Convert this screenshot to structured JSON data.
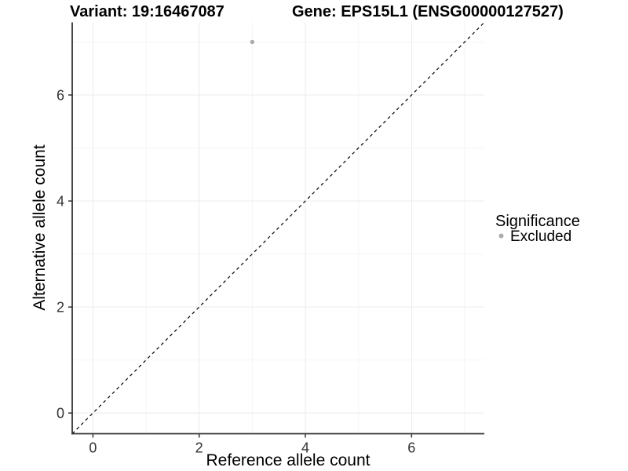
{
  "header": {
    "variant_title": "Variant: 19:16467087",
    "gene_title": "Gene: EPS15L1 (ENSG00000127527)"
  },
  "chart_data": {
    "type": "scatter",
    "title": "Variant: 19:16467087  Gene: EPS15L1 (ENSG00000127527)",
    "xlabel": "Reference allele count",
    "ylabel": "Alternative allele count",
    "xlim": [
      -0.39,
      7.37
    ],
    "ylim": [
      -0.39,
      7.37
    ],
    "x_ticks": [
      0,
      2,
      4,
      6
    ],
    "y_ticks": [
      0,
      2,
      4,
      6
    ],
    "x_minor_ticks": [
      1,
      3,
      5,
      7
    ],
    "y_minor_ticks": [
      1,
      3,
      5,
      7
    ],
    "grid": true,
    "legend_position": "right",
    "series": [
      {
        "name": "Excluded",
        "points": [
          {
            "x": 3,
            "y": 7
          }
        ]
      }
    ],
    "reference_line": {
      "kind": "abline",
      "slope": 1,
      "intercept": 0,
      "style": "dashed"
    }
  },
  "legend": {
    "title": "Significance",
    "items": [
      {
        "label": "Excluded",
        "color": "#ababab"
      }
    ]
  },
  "colors": {
    "point": "#ababab",
    "axis_line": "#333333",
    "tick_text": "#333333",
    "grid_major": "#ebebeb",
    "grid_minor": "#f4f4f4",
    "reference_line": "#000000",
    "background": "#ffffff"
  }
}
